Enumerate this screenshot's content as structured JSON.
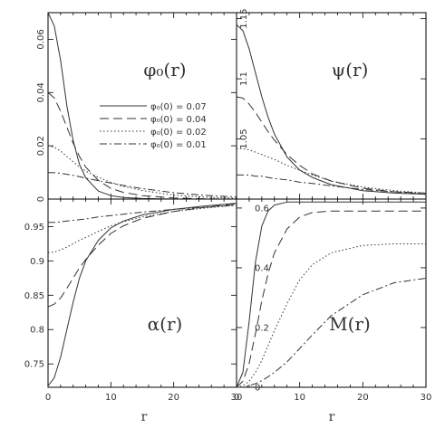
{
  "chart_data": [
    {
      "type": "line",
      "panel_label": "φ₀(r)",
      "x": [
        0,
        1,
        2,
        3,
        4,
        5,
        6,
        8,
        10,
        12,
        15,
        20,
        25,
        30
      ],
      "xlim": [
        0,
        30
      ],
      "ylim": [
        0,
        0.07
      ],
      "yticks": [
        0,
        0.02,
        0.04,
        0.06
      ],
      "ytick_labels": [
        "0",
        "0.02",
        "0.04",
        "0.06"
      ],
      "series": [
        {
          "name": "φ₀(0) = 0.07",
          "style": "solid",
          "values": [
            0.07,
            0.065,
            0.052,
            0.035,
            0.022,
            0.013,
            0.008,
            0.003,
            0.0013,
            0.0006,
            0.0002,
            0.0,
            0.0,
            0.0
          ]
        },
        {
          "name": "φ₀(0) = 0.04",
          "style": "long-dash",
          "values": [
            0.04,
            0.038,
            0.033,
            0.027,
            0.021,
            0.016,
            0.012,
            0.007,
            0.004,
            0.0025,
            0.0013,
            0.0004,
            0.0001,
            0.0
          ]
        },
        {
          "name": "φ₀(0) = 0.02",
          "style": "dotted",
          "values": [
            0.02,
            0.0195,
            0.018,
            0.016,
            0.014,
            0.012,
            0.0105,
            0.0082,
            0.0063,
            0.0048,
            0.0032,
            0.0015,
            0.0007,
            0.0003
          ]
        },
        {
          "name": "φ₀(0) = 0.01",
          "style": "dash-dot",
          "values": [
            0.01,
            0.0099,
            0.0097,
            0.0093,
            0.0089,
            0.0084,
            0.0079,
            0.0069,
            0.006,
            0.0051,
            0.0039,
            0.0024,
            0.0014,
            0.0008
          ]
        }
      ]
    },
    {
      "type": "line",
      "panel_label": "ψ(r)",
      "x": [
        0,
        1,
        2,
        3,
        4,
        5,
        6,
        8,
        10,
        12,
        15,
        20,
        25,
        30
      ],
      "xlim": [
        0,
        30
      ],
      "ylim": [
        1,
        1.155
      ],
      "yticks": [
        1.05,
        1.1,
        1.15
      ],
      "ytick_labels": [
        "1.05",
        "1.1",
        "1.15"
      ],
      "series": [
        {
          "name": "φ₀(0) = 0.07",
          "style": "solid",
          "values": [
            1.145,
            1.14,
            1.125,
            1.105,
            1.085,
            1.068,
            1.054,
            1.035,
            1.024,
            1.018,
            1.012,
            1.007,
            1.005,
            1.004
          ]
        },
        {
          "name": "φ₀(0) = 0.04",
          "style": "long-dash",
          "values": [
            1.085,
            1.084,
            1.079,
            1.072,
            1.064,
            1.056,
            1.049,
            1.037,
            1.028,
            1.021,
            1.015,
            1.009,
            1.006,
            1.005
          ]
        },
        {
          "name": "φ₀(0) = 0.02",
          "style": "dotted",
          "values": [
            1.042,
            1.042,
            1.041,
            1.039,
            1.037,
            1.035,
            1.033,
            1.028,
            1.024,
            1.02,
            1.015,
            1.01,
            1.007,
            1.005
          ]
        },
        {
          "name": "φ₀(0) = 0.01",
          "style": "dash-dot",
          "values": [
            1.02,
            1.02,
            1.02,
            1.019,
            1.019,
            1.018,
            1.017,
            1.016,
            1.014,
            1.013,
            1.011,
            1.008,
            1.006,
            1.004
          ]
        }
      ]
    },
    {
      "type": "line",
      "panel_label": "α(r)",
      "x": [
        0,
        1,
        2,
        3,
        4,
        5,
        6,
        8,
        10,
        12,
        15,
        20,
        25,
        30
      ],
      "xlim": [
        0,
        30
      ],
      "ylim": [
        0.716,
        0.99
      ],
      "yticks": [
        0.75,
        0.8,
        0.85,
        0.9,
        0.95
      ],
      "ytick_labels": [
        "0.75",
        "0.8",
        "0.85",
        "0.9",
        "0.95"
      ],
      "xticks": [
        0,
        10,
        20,
        30
      ],
      "xtick_labels": [
        "0",
        "10",
        "20",
        "30"
      ],
      "series": [
        {
          "name": "φ₀(0) = 0.07",
          "style": "solid",
          "values": [
            0.718,
            0.73,
            0.76,
            0.8,
            0.84,
            0.875,
            0.9,
            0.93,
            0.948,
            0.958,
            0.967,
            0.975,
            0.98,
            0.984
          ]
        },
        {
          "name": "φ₀(0) = 0.04",
          "style": "long-dash",
          "values": [
            0.833,
            0.837,
            0.846,
            0.86,
            0.875,
            0.89,
            0.902,
            0.923,
            0.94,
            0.951,
            0.962,
            0.972,
            0.978,
            0.983
          ]
        },
        {
          "name": "φ₀(0) = 0.02",
          "style": "dotted",
          "values": [
            0.912,
            0.913,
            0.916,
            0.92,
            0.925,
            0.93,
            0.934,
            0.943,
            0.951,
            0.957,
            0.964,
            0.972,
            0.977,
            0.981
          ]
        },
        {
          "name": "φ₀(0) = 0.01",
          "style": "dash-dot",
          "values": [
            0.956,
            0.956,
            0.957,
            0.958,
            0.959,
            0.96,
            0.961,
            0.964,
            0.966,
            0.968,
            0.971,
            0.975,
            0.978,
            0.981
          ]
        }
      ]
    },
    {
      "type": "line",
      "panel_label": "M(r)",
      "x": [
        0,
        1,
        2,
        3,
        4,
        5,
        6,
        8,
        10,
        12,
        15,
        20,
        25,
        30
      ],
      "xlim": [
        0,
        30
      ],
      "ylim": [
        0,
        0.63
      ],
      "yticks": [
        0,
        0.2,
        0.4,
        0.6
      ],
      "ytick_labels": [
        "0",
        "0.2",
        "0.4",
        "0.6"
      ],
      "xticks": [
        0,
        10,
        20,
        30
      ],
      "xtick_labels": [
        "0",
        "10",
        "20",
        "30"
      ],
      "series": [
        {
          "name": "φ₀(0) = 0.07",
          "style": "solid",
          "values": [
            0,
            0.05,
            0.22,
            0.42,
            0.54,
            0.59,
            0.61,
            0.62,
            0.62,
            0.62,
            0.62,
            0.62,
            0.62,
            0.62
          ]
        },
        {
          "name": "φ₀(0) = 0.04",
          "style": "long-dash",
          "values": [
            0,
            0.02,
            0.08,
            0.18,
            0.29,
            0.38,
            0.45,
            0.53,
            0.57,
            0.585,
            0.59,
            0.59,
            0.59,
            0.59
          ]
        },
        {
          "name": "φ₀(0) = 0.02",
          "style": "dotted",
          "values": [
            0,
            0.005,
            0.02,
            0.05,
            0.09,
            0.14,
            0.19,
            0.28,
            0.36,
            0.41,
            0.45,
            0.475,
            0.48,
            0.48
          ]
        },
        {
          "name": "φ₀(0) = 0.01",
          "style": "dash-dot",
          "values": [
            0,
            0.001,
            0.005,
            0.012,
            0.022,
            0.035,
            0.05,
            0.085,
            0.13,
            0.175,
            0.24,
            0.31,
            0.35,
            0.365
          ]
        }
      ]
    }
  ],
  "xlabel": "r",
  "legend": {
    "placement": "inside top-left panel, center",
    "entries": [
      "φ₀(0) = 0.07",
      "φ₀(0) = 0.04",
      "φ₀(0) = 0.02",
      "φ₀(0) = 0.01"
    ]
  },
  "colors": {
    "line": "#333333",
    "frame": "#000000",
    "background": "#ffffff"
  }
}
